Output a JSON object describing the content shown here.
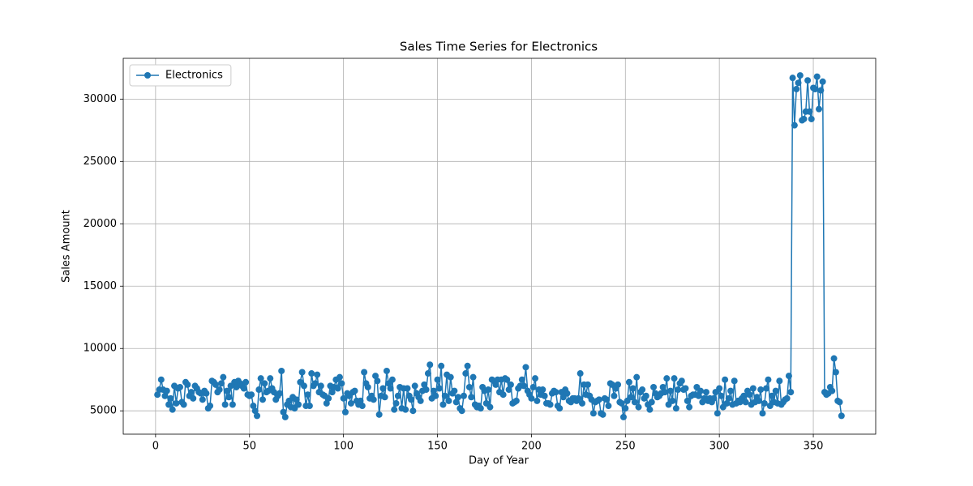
{
  "chart_data": {
    "type": "line",
    "title": "Sales Time Series for Electronics",
    "xlabel": "Day of Year",
    "ylabel": "Sales Amount",
    "x": [
      1,
      2,
      3,
      4,
      5,
      6,
      7,
      8,
      9,
      10,
      11,
      12,
      13,
      14,
      15,
      16,
      17,
      18,
      19,
      20,
      21,
      22,
      23,
      24,
      25,
      26,
      27,
      28,
      29,
      30,
      31,
      32,
      33,
      34,
      35,
      36,
      37,
      38,
      39,
      40,
      41,
      42,
      43,
      44,
      45,
      46,
      47,
      48,
      49,
      50,
      51,
      52,
      53,
      54,
      55,
      56,
      57,
      58,
      59,
      60,
      61,
      62,
      63,
      64,
      65,
      66,
      67,
      68,
      69,
      70,
      71,
      72,
      73,
      74,
      75,
      76,
      77,
      78,
      79,
      80,
      81,
      82,
      83,
      84,
      85,
      86,
      87,
      88,
      89,
      90,
      91,
      92,
      93,
      94,
      95,
      96,
      97,
      98,
      99,
      100,
      101,
      102,
      103,
      104,
      105,
      106,
      107,
      108,
      109,
      110,
      111,
      112,
      113,
      114,
      115,
      116,
      117,
      118,
      119,
      120,
      121,
      122,
      123,
      124,
      125,
      126,
      127,
      128,
      129,
      130,
      131,
      132,
      133,
      134,
      135,
      136,
      137,
      138,
      139,
      140,
      141,
      142,
      143,
      144,
      145,
      146,
      147,
      148,
      149,
      150,
      151,
      152,
      153,
      154,
      155,
      156,
      157,
      158,
      159,
      160,
      161,
      162,
      163,
      164,
      165,
      166,
      167,
      168,
      169,
      170,
      171,
      172,
      173,
      174,
      175,
      176,
      177,
      178,
      179,
      180,
      181,
      182,
      183,
      184,
      185,
      186,
      187,
      188,
      189,
      190,
      191,
      192,
      193,
      194,
      195,
      196,
      197,
      198,
      199,
      200,
      201,
      202,
      203,
      204,
      205,
      206,
      207,
      208,
      209,
      210,
      211,
      212,
      213,
      214,
      215,
      216,
      217,
      218,
      219,
      220,
      221,
      222,
      223,
      224,
      225,
      226,
      227,
      228,
      229,
      230,
      231,
      232,
      233,
      234,
      235,
      236,
      237,
      238,
      239,
      240,
      241,
      242,
      243,
      244,
      245,
      246,
      247,
      248,
      249,
      250,
      251,
      252,
      253,
      254,
      255,
      256,
      257,
      258,
      259,
      260,
      261,
      262,
      263,
      264,
      265,
      266,
      267,
      268,
      269,
      270,
      271,
      272,
      273,
      274,
      275,
      276,
      277,
      278,
      279,
      280,
      281,
      282,
      283,
      284,
      285,
      286,
      287,
      288,
      289,
      290,
      291,
      292,
      293,
      294,
      295,
      296,
      297,
      298,
      299,
      300,
      301,
      302,
      303,
      304,
      305,
      306,
      307,
      308,
      309,
      310,
      311,
      312,
      313,
      314,
      315,
      316,
      317,
      318,
      319,
      320,
      321,
      322,
      323,
      324,
      325,
      326,
      327,
      328,
      329,
      330,
      331,
      332,
      333,
      334,
      335,
      336,
      337,
      338,
      339,
      340,
      341,
      342,
      343,
      344,
      345,
      346,
      347,
      348,
      349,
      350,
      351,
      352,
      353,
      354,
      355,
      356,
      357,
      358,
      359,
      360,
      361,
      362,
      363,
      364,
      365
    ],
    "series": [
      {
        "name": "Electronics",
        "color": "#1f77b4",
        "values": [
          6300,
          6700,
          7500,
          6700,
          6200,
          6600,
          5500,
          6000,
          5100,
          7000,
          5600,
          6800,
          6900,
          5700,
          5500,
          7300,
          7100,
          6200,
          6500,
          6000,
          7000,
          6800,
          6500,
          6400,
          5900,
          6600,
          6400,
          5200,
          5400,
          7400,
          7300,
          7100,
          6500,
          6700,
          7200,
          7700,
          5500,
          6600,
          6100,
          7000,
          5500,
          7300,
          6900,
          7400,
          7200,
          7000,
          6800,
          7300,
          6300,
          6200,
          6300,
          5400,
          5000,
          4600,
          6700,
          7600,
          5900,
          7200,
          6500,
          6600,
          7600,
          6800,
          6500,
          5900,
          6200,
          6400,
          8200,
          4900,
          4500,
          5500,
          5800,
          5300,
          6100,
          5200,
          5900,
          5500,
          7300,
          8100,
          7000,
          5400,
          6300,
          5400,
          8000,
          7000,
          7200,
          7900,
          6500,
          7000,
          6300,
          6200,
          5600,
          6000,
          7000,
          6500,
          6900,
          7500,
          6800,
          7700,
          7200,
          6000,
          4900,
          6400,
          6200,
          5600,
          6500,
          6600,
          5800,
          5500,
          5800,
          5400,
          8100,
          7200,
          6900,
          6000,
          6200,
          5900,
          7800,
          7400,
          4700,
          6200,
          6800,
          6100,
          8200,
          7200,
          6800,
          7500,
          5100,
          5600,
          6200,
          6900,
          5200,
          6800,
          5100,
          6800,
          6200,
          5900,
          5000,
          7000,
          6400,
          6100,
          5800,
          6600,
          7100,
          6700,
          8000,
          8700,
          6000,
          6600,
          6200,
          7500,
          6800,
          8600,
          5500,
          6200,
          7900,
          5800,
          7700,
          6400,
          6600,
          5700,
          6100,
          5200,
          5000,
          6200,
          8000,
          8600,
          6900,
          6100,
          7700,
          5500,
          5300,
          5400,
          5200,
          6900,
          6600,
          5600,
          6700,
          5300,
          7500,
          7400,
          7100,
          7500,
          6500,
          7500,
          6300,
          7600,
          7500,
          6700,
          7100,
          5600,
          5700,
          5800,
          6800,
          7000,
          7500,
          7000,
          8500,
          6600,
          6300,
          6000,
          6900,
          7600,
          5800,
          6700,
          6300,
          6700,
          6200,
          5600,
          5600,
          5500,
          6400,
          6600,
          6500,
          5400,
          5200,
          6500,
          6100,
          6700,
          6400,
          5800,
          5700,
          6000,
          6000,
          5800,
          6000,
          8000,
          5600,
          7100,
          6300,
          7100,
          6200,
          5900,
          4800,
          5700,
          5800,
          5900,
          4800,
          4700,
          6000,
          5900,
          5400,
          7200,
          7100,
          6200,
          6800,
          7100,
          5700,
          5600,
          4500,
          5200,
          5800,
          7300,
          6100,
          6800,
          5700,
          7700,
          5300,
          6500,
          6700,
          6000,
          6200,
          5500,
          5100,
          5700,
          6900,
          6400,
          6100,
          6200,
          6400,
          6900,
          6500,
          7600,
          5500,
          6600,
          5800,
          7600,
          5200,
          6700,
          7200,
          7400,
          6700,
          6800,
          5800,
          5300,
          6200,
          6300,
          6300,
          6900,
          6200,
          6600,
          5700,
          6000,
          6500,
          5800,
          6000,
          5700,
          6000,
          6500,
          4800,
          6800,
          6200,
          5300,
          7500,
          5600,
          6000,
          6600,
          5500,
          7400,
          5600,
          5800,
          5700,
          6000,
          6200,
          5700,
          6600,
          6300,
          5500,
          6800,
          5700,
          6100,
          5800,
          6700,
          4800,
          5600,
          6800,
          7500,
          5400,
          6200,
          5700,
          6600,
          5600,
          7400,
          5500,
          5700,
          5900,
          6000,
          7800,
          6500,
          31700,
          27900,
          30800,
          31300,
          31900,
          28300,
          28400,
          29000,
          31500,
          29000,
          28400,
          30900,
          30800,
          31800,
          29200,
          30700,
          31400,
          6500,
          6300,
          6400,
          6900,
          6600,
          9200,
          8100,
          5800,
          5700,
          4600
        ]
      }
    ],
    "xlim": [
      -17.2,
      383.2
    ],
    "xticks": [
      0,
      50,
      100,
      150,
      200,
      250,
      300,
      350
    ],
    "ylim": [
      3130,
      33270
    ],
    "yticks": [
      5000,
      10000,
      15000,
      20000,
      25000,
      30000
    ],
    "grid": true,
    "legend": "upper left"
  }
}
